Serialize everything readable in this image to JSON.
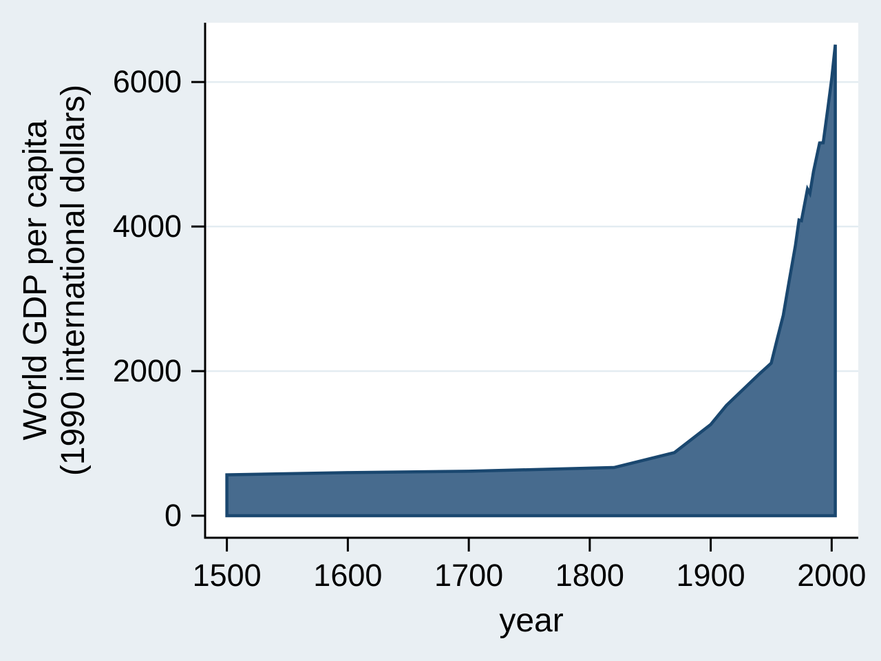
{
  "chart_data": {
    "type": "area",
    "title": "",
    "xlabel": "year",
    "ylabel_line1": "World GDP per capita",
    "ylabel_line2": "(1990 international dollars)",
    "series": [
      {
        "name": "World GDP per capita (1990 international dollars)",
        "baseline": 0,
        "x": [
          1500,
          1600,
          1700,
          1820,
          1870,
          1900,
          1913,
          1940,
          1950,
          1955,
          1960,
          1965,
          1970,
          1973,
          1975,
          1980,
          1982,
          1985,
          1990,
          1993,
          1997,
          2000,
          2003
        ],
        "y": [
          566,
          596,
          615,
          667,
          873,
          1262,
          1526,
          1958,
          2111,
          2447,
          2773,
          3259,
          3736,
          4091,
          4081,
          4520,
          4460,
          4764,
          5157,
          5160,
          5660,
          6038,
          6516
        ]
      }
    ],
    "x_ticks": [
      1500,
      1600,
      1700,
      1800,
      1900,
      2000
    ],
    "y_ticks": [
      0,
      2000,
      4000,
      6000
    ],
    "y_grid_ticks": [
      2000,
      4000,
      6000
    ],
    "xlim": [
      1482,
      2022
    ],
    "ylim": [
      -305,
      6820
    ],
    "grid": "horizontal gridlines at labeled y ticks (except 0)",
    "legend_position": "none",
    "colors": {
      "area_fill": "#476b8e",
      "area_line": "#1a476f",
      "page_background": "#e9eff3",
      "plot_background": "#ffffff",
      "gridline": "#e3ecf1",
      "axis": "#000000",
      "text": "#000000"
    }
  }
}
